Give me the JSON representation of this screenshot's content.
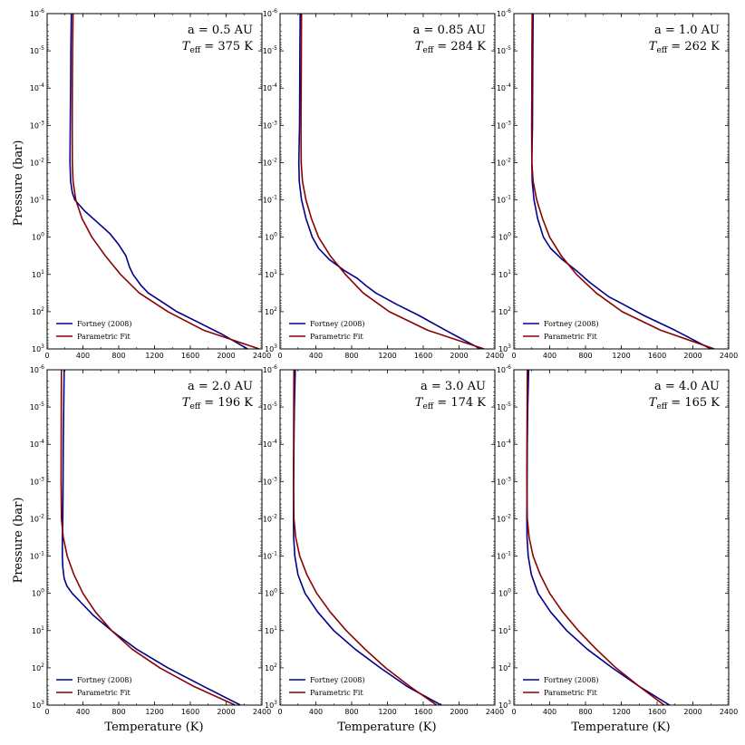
{
  "figure": {
    "ylabel": "Pressure (bar)",
    "xlabel": "Temperature (K)",
    "legend_labels": [
      "Fortney (2008)",
      "Parametric Fit"
    ],
    "colors": {
      "fortney": "#00008B",
      "fit": "#8B0000"
    }
  },
  "chart_data": [
    {
      "type": "line",
      "annotation_a": "a = 0.5 AU",
      "annotation_teff": "T_eff = 375 K",
      "xlim": [
        0,
        2400
      ],
      "ylim_log10": [
        -6,
        3
      ],
      "y_inverted": true,
      "x_ticks": [
        "0",
        "400",
        "800",
        "1200",
        "1600",
        "2000",
        "2400"
      ],
      "y_ticks": [
        "10^-6",
        "10^-5",
        "10^-4",
        "10^-3",
        "10^-2",
        "10^-1",
        "10^0",
        "10^1",
        "10^2",
        "10^3"
      ],
      "legend_position": "lower-left",
      "series": [
        {
          "name": "Fortney (2008)",
          "log10_pressure": [
            -6,
            -5,
            -4,
            -3,
            -2,
            -1.5,
            -1.2,
            -1.0,
            -0.7,
            -0.4,
            -0.1,
            0.2,
            0.5,
            0.8,
            1.0,
            1.3,
            1.5,
            1.7,
            2.0,
            2.3,
            2.6,
            3.0
          ],
          "temperature": [
            270,
            265,
            262,
            258,
            255,
            262,
            280,
            310,
            420,
            560,
            700,
            800,
            880,
            920,
            960,
            1050,
            1130,
            1260,
            1450,
            1700,
            1950,
            2240
          ]
        },
        {
          "name": "Parametric Fit",
          "log10_pressure": [
            -6,
            -5,
            -4,
            -3,
            -2,
            -1.5,
            -1.0,
            -0.5,
            0,
            0.5,
            1.0,
            1.5,
            2.0,
            2.5,
            3.0
          ],
          "temperature": [
            290,
            285,
            282,
            280,
            282,
            290,
            320,
            390,
            500,
            650,
            820,
            1030,
            1350,
            1750,
            2370
          ]
        }
      ]
    },
    {
      "type": "line",
      "annotation_a": "a = 0.85 AU",
      "annotation_teff": "T_eff = 284 K",
      "xlim": [
        0,
        2400
      ],
      "ylim_log10": [
        -6,
        3
      ],
      "y_inverted": true,
      "x_ticks": [
        "0",
        "400",
        "800",
        "1200",
        "1600",
        "2000",
        "2400"
      ],
      "y_ticks": [
        "10^-6",
        "10^-5",
        "10^-4",
        "10^-3",
        "10^-2",
        "10^-1",
        "10^0",
        "10^1",
        "10^2",
        "10^3"
      ],
      "legend_position": "lower-left",
      "series": [
        {
          "name": "Fortney (2008)",
          "log10_pressure": [
            -6,
            -5,
            -4,
            -3,
            -2,
            -1.5,
            -1.0,
            -0.5,
            0,
            0.3,
            0.6,
            0.9,
            1.1,
            1.3,
            1.5,
            1.8,
            2.1,
            2.5,
            3.0
          ],
          "temperature": [
            225,
            222,
            220,
            218,
            210,
            215,
            240,
            290,
            360,
            430,
            550,
            720,
            860,
            960,
            1070,
            1300,
            1550,
            1850,
            2240
          ]
        },
        {
          "name": "Parametric Fit",
          "log10_pressure": [
            -6,
            -5,
            -4,
            -3,
            -2,
            -1.5,
            -1.0,
            -0.5,
            0,
            0.5,
            1.0,
            1.5,
            2.0,
            2.5,
            3.0
          ],
          "temperature": [
            240,
            238,
            236,
            234,
            236,
            250,
            290,
            350,
            430,
            560,
            730,
            930,
            1220,
            1650,
            2280
          ]
        }
      ]
    },
    {
      "type": "line",
      "annotation_a": "a = 1.0 AU",
      "annotation_teff": "T_eff = 262 K",
      "xlim": [
        0,
        2400
      ],
      "ylim_log10": [
        -6,
        3
      ],
      "y_inverted": true,
      "x_ticks": [
        "0",
        "400",
        "800",
        "1200",
        "1600",
        "2000",
        "2400"
      ],
      "y_ticks": [
        "10^-6",
        "10^-5",
        "10^-4",
        "10^-3",
        "10^-2",
        "10^-1",
        "10^0",
        "10^1",
        "10^2",
        "10^3"
      ],
      "legend_position": "lower-left",
      "series": [
        {
          "name": "Fortney (2008)",
          "log10_pressure": [
            -6,
            -5,
            -4,
            -3,
            -2,
            -1.5,
            -1.0,
            -0.5,
            0,
            0.3,
            0.6,
            0.9,
            1.2,
            1.4,
            1.6,
            1.8,
            2.1,
            2.5,
            3.0
          ],
          "temperature": [
            215,
            212,
            210,
            208,
            200,
            205,
            225,
            265,
            330,
            410,
            540,
            700,
            840,
            950,
            1060,
            1220,
            1450,
            1800,
            2200
          ]
        },
        {
          "name": "Parametric Fit",
          "log10_pressure": [
            -6,
            -5,
            -4,
            -3,
            -2,
            -1.5,
            -1.0,
            -0.5,
            0,
            0.5,
            1.0,
            1.5,
            2.0,
            2.5,
            3.0
          ],
          "temperature": [
            205,
            202,
            200,
            198,
            200,
            215,
            255,
            320,
            400,
            530,
            700,
            920,
            1210,
            1640,
            2240
          ]
        }
      ]
    },
    {
      "type": "line",
      "annotation_a": "a = 2.0 AU",
      "annotation_teff": "T_eff = 196 K",
      "xlim": [
        0,
        2400
      ],
      "ylim_log10": [
        -6,
        3
      ],
      "y_inverted": true,
      "x_ticks": [
        "0",
        "400",
        "800",
        "1200",
        "1600",
        "2000",
        "2400"
      ],
      "y_ticks": [
        "10^-6",
        "10^-5",
        "10^-4",
        "10^-3",
        "10^-2",
        "10^-1",
        "10^0",
        "10^1",
        "10^2",
        "10^3"
      ],
      "legend_position": "lower-left",
      "series": [
        {
          "name": "Fortney (2008)",
          "log10_pressure": [
            -6,
            -5,
            -4,
            -3,
            -2,
            -1.5,
            -1.0,
            -0.7,
            -0.4,
            -0.2,
            0,
            0.3,
            0.6,
            1.0,
            1.5,
            2.0,
            2.5,
            3.0
          ],
          "temperature": [
            190,
            185,
            180,
            178,
            175,
            170,
            170,
            175,
            190,
            220,
            280,
            400,
            520,
            720,
            1000,
            1350,
            1750,
            2160
          ]
        },
        {
          "name": "Parametric Fit",
          "log10_pressure": [
            -6,
            -5,
            -4,
            -3,
            -2,
            -1.5,
            -1.0,
            -0.5,
            0,
            0.5,
            1.0,
            1.5,
            2.0,
            2.5,
            3.0
          ],
          "temperature": [
            160,
            158,
            157,
            156,
            160,
            180,
            225,
            300,
            400,
            540,
            720,
            950,
            1260,
            1640,
            2100
          ]
        }
      ]
    },
    {
      "type": "line",
      "annotation_a": "a = 3.0 AU",
      "annotation_teff": "T_eff = 174 K",
      "xlim": [
        0,
        2400
      ],
      "ylim_log10": [
        -6,
        3
      ],
      "y_inverted": true,
      "x_ticks": [
        "0",
        "400",
        "800",
        "1200",
        "1600",
        "2000",
        "2400"
      ],
      "y_ticks": [
        "10^-6",
        "10^-5",
        "10^-4",
        "10^-3",
        "10^-2",
        "10^-1",
        "10^0",
        "10^1",
        "10^2",
        "10^3"
      ],
      "legend_position": "lower-left",
      "series": [
        {
          "name": "Fortney (2008)",
          "log10_pressure": [
            -6,
            -5,
            -4,
            -3,
            -2,
            -1.5,
            -1.0,
            -0.5,
            0,
            0.5,
            1.0,
            1.5,
            2.0,
            2.5,
            3.0
          ],
          "temperature": [
            170,
            160,
            155,
            152,
            150,
            152,
            165,
            200,
            280,
            420,
            600,
            840,
            1120,
            1420,
            1800
          ]
        },
        {
          "name": "Parametric Fit",
          "log10_pressure": [
            -6,
            -5,
            -4,
            -3,
            -2,
            -1.5,
            -1.0,
            -0.5,
            0,
            0.5,
            1.0,
            1.5,
            2.0,
            2.5,
            3.0
          ],
          "temperature": [
            155,
            153,
            152,
            150,
            155,
            175,
            220,
            300,
            410,
            560,
            740,
            950,
            1180,
            1450,
            1750
          ]
        }
      ]
    },
    {
      "type": "line",
      "annotation_a": "a = 4.0 AU",
      "annotation_teff": "T_eff = 165 K",
      "xlim": [
        0,
        2400
      ],
      "ylim_log10": [
        -6,
        3
      ],
      "y_inverted": true,
      "x_ticks": [
        "0",
        "400",
        "800",
        "1200",
        "1600",
        "2000",
        "2400"
      ],
      "y_ticks": [
        "10^-6",
        "10^-5",
        "10^-4",
        "10^-3",
        "10^-2",
        "10^-1",
        "10^0",
        "10^1",
        "10^2",
        "10^3"
      ],
      "legend_position": "lower-left",
      "series": [
        {
          "name": "Fortney (2008)",
          "log10_pressure": [
            -6,
            -5,
            -4,
            -3,
            -2,
            -1.5,
            -1.0,
            -0.5,
            0,
            0.5,
            1.0,
            1.5,
            2.0,
            2.5,
            3.0
          ],
          "temperature": [
            165,
            155,
            150,
            148,
            145,
            147,
            160,
            195,
            270,
            410,
            590,
            820,
            1100,
            1400,
            1740
          ]
        },
        {
          "name": "Parametric Fit",
          "log10_pressure": [
            -6,
            -5,
            -4,
            -3,
            -2,
            -1.5,
            -1.0,
            -0.5,
            0,
            0.5,
            1.0,
            1.5,
            2.0,
            2.5,
            3.0
          ],
          "temperature": [
            150,
            148,
            146,
            145,
            150,
            170,
            215,
            295,
            400,
            545,
            720,
            920,
            1140,
            1400,
            1680
          ]
        }
      ]
    }
  ]
}
